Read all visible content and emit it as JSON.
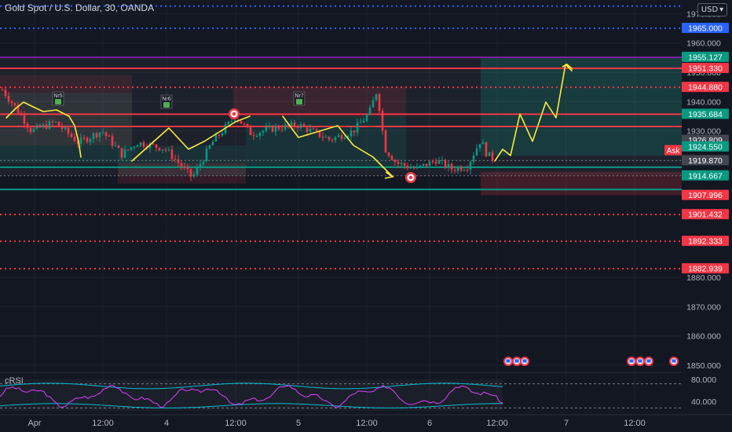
{
  "header": {
    "symbol": "Gold Spot / U.S. Dollar, 30, OANDA",
    "currency": "USD"
  },
  "price_axis": {
    "ticks": [
      "1970.000",
      "1960.000",
      "1950.000",
      "1940.000",
      "1930.000",
      "1920.000",
      "1880.000",
      "1870.000",
      "1860.000",
      "1850.000"
    ],
    "tick_values": [
      1970,
      1960,
      1950,
      1940,
      1930,
      1920,
      1880,
      1870,
      1860,
      1850
    ]
  },
  "price_labels": [
    {
      "text": "1965.000",
      "color": "#2962ff",
      "value": 1965.0
    },
    {
      "text": "1955.127",
      "color": "#089981",
      "value": 1955.127
    },
    {
      "text": "1951.330",
      "color": "#f23645",
      "value": 1951.33
    },
    {
      "text": "1944.880",
      "color": "#f23645",
      "value": 1944.88
    },
    {
      "text": "1935.684",
      "color": "#089981",
      "value": 1935.684
    },
    {
      "text": "1926.809",
      "color": "#434651",
      "value": 1926.809
    },
    {
      "text": "1924.550",
      "color": "#089981",
      "value": 1924.55
    },
    {
      "text": "1919.870",
      "color": "#434651",
      "value": 1919.87
    },
    {
      "text": "1914.667",
      "color": "#089981",
      "value": 1914.667
    },
    {
      "text": "1907.996",
      "color": "#f23645",
      "value": 1907.996
    },
    {
      "text": "1901.432",
      "color": "#f23645",
      "value": 1901.432
    },
    {
      "text": "1892.333",
      "color": "#f23645",
      "value": 1892.333
    },
    {
      "text": "1882.939",
      "color": "#f23645",
      "value": 1882.939
    }
  ],
  "ask_label": "Ask",
  "time_axis": {
    "labels": [
      "Apr",
      "12:00",
      "4",
      "12:00",
      "5",
      "12:00",
      "6",
      "12:00",
      "7",
      "12:00"
    ]
  },
  "markers": [
    "Nr5",
    "Nr6",
    "Nr7"
  ],
  "indicator": {
    "name": "cRSI",
    "ticks": [
      "80.000",
      "40.000"
    ],
    "tick_values": [
      80,
      40
    ]
  },
  "colors": {
    "background": "#131722",
    "bull": "#089981",
    "bear": "#f23645",
    "drawing": "#ffeb3b",
    "level_blue": "#2962ff"
  }
}
